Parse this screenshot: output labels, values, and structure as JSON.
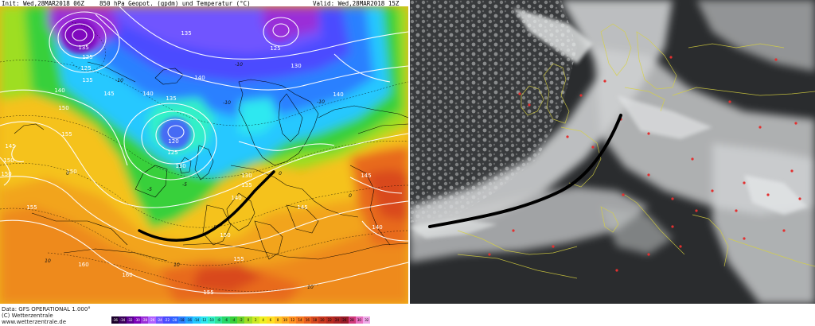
{
  "map": {
    "header": {
      "init": "Init: Wed,28MAR2018 06Z",
      "title": "850 hPa Geopot. (gpdm) und Temperatur (°C)",
      "valid": "Valid: Wed,28MAR2018 15Z"
    },
    "footer": {
      "data_line": "Data: GFS OPERATIONAL 1.000°",
      "copyright": "(C) Wetterzentrale",
      "url": "www.wetterzentrale.de"
    },
    "geopotential_labels": [
      "135",
      "125",
      "125",
      "135",
      "140",
      "145",
      "150",
      "140",
      "135",
      "140",
      "120",
      "125",
      "130",
      "130",
      "135",
      "140",
      "145",
      "150",
      "155",
      "155",
      "150",
      "160",
      "150",
      "145",
      "140",
      "140",
      "135",
      "125",
      "130",
      "150",
      "155",
      "155",
      "160",
      "145"
    ],
    "temperature_labels": [
      "-10",
      "-10",
      "-10",
      "-10",
      "-5",
      "0",
      "0",
      "0",
      "5",
      "10",
      "10",
      "10",
      "-5"
    ],
    "colorbar_ticks": [
      "-36",
      "-34",
      "-32",
      "-30",
      "-28",
      "-26",
      "-24",
      "-22",
      "-20",
      "-18",
      "-16",
      "-14",
      "-12",
      "-10",
      "-8",
      "-6",
      "-4",
      "-2",
      "0",
      "2",
      "4",
      "6",
      "8",
      "10",
      "12",
      "14",
      "16",
      "18",
      "20",
      "22",
      "24",
      "26",
      "28",
      "30",
      "32"
    ],
    "colorbar_colors": [
      "#1a0029",
      "#3a0059",
      "#5a0090",
      "#7a00b8",
      "#9a2fd8",
      "#b060ff",
      "#7055ff",
      "#4b4bff",
      "#3060ff",
      "#2b80ff",
      "#22a4ff",
      "#25c8ff",
      "#2ee8f0",
      "#33f0c8",
      "#2ee49a",
      "#28d86a",
      "#38d03a",
      "#6ad12a",
      "#9fdc24",
      "#cbe924",
      "#f0f020",
      "#ffdf22",
      "#ffc522",
      "#ffab22",
      "#ff9020",
      "#f37820",
      "#e86020",
      "#d84a20",
      "#c83820",
      "#b82c20",
      "#a82424",
      "#981c28",
      "#d03a7a",
      "#e870c0",
      "#f0a8e8"
    ]
  },
  "satellite": {
    "description_color": "#000000",
    "city_marker_color": "#e23030"
  }
}
